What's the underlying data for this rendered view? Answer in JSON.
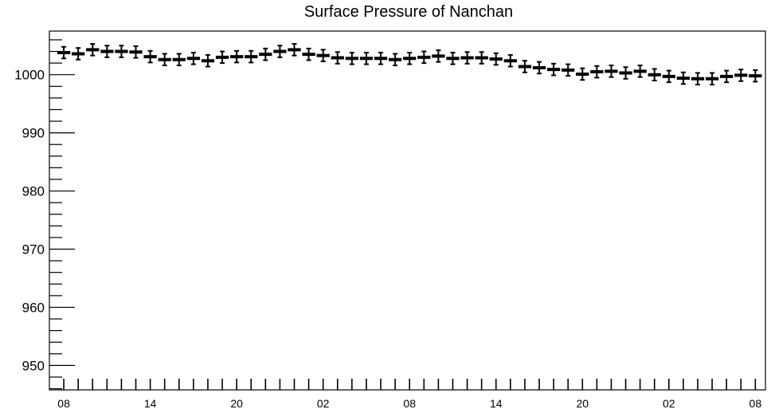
{
  "chart_data": {
    "type": "scatter",
    "title": "Surface Pressure of Nanchan",
    "xlabel": "",
    "ylabel": "",
    "ylim": [
      945.8,
      1007.5
    ],
    "xlim": [
      -1.0,
      48.7
    ],
    "x_tick_positions": [
      0,
      6,
      12,
      18,
      24,
      30,
      36,
      42,
      48
    ],
    "x_tick_labels": [
      "08",
      "14",
      "20",
      "02",
      "08",
      "14",
      "20",
      "02",
      "08"
    ],
    "y_ticks": [
      950,
      960,
      970,
      980,
      990,
      1000
    ],
    "grid": false,
    "error_bar": 1.0,
    "series": [
      {
        "x": [
          0,
          1,
          2,
          3,
          4,
          5,
          6,
          7,
          8,
          9,
          10,
          11,
          12,
          13,
          14,
          15,
          16,
          17,
          18,
          19,
          20,
          21,
          22,
          23,
          24,
          25,
          26,
          27,
          28,
          29,
          30,
          31,
          32,
          33,
          34,
          35,
          36,
          37,
          38,
          39,
          40,
          41,
          42,
          43,
          44,
          45,
          46,
          47,
          48
        ],
        "values": [
          1003.8,
          1003.6,
          1004.3,
          1004.0,
          1004.0,
          1003.9,
          1003.1,
          1002.6,
          1002.6,
          1002.8,
          1002.4,
          1003.0,
          1003.1,
          1003.1,
          1003.5,
          1004.0,
          1004.3,
          1003.5,
          1003.3,
          1002.9,
          1002.8,
          1002.8,
          1002.8,
          1002.6,
          1002.8,
          1003.0,
          1003.2,
          1002.8,
          1002.9,
          1002.9,
          1002.7,
          1002.4,
          1001.4,
          1001.2,
          1000.9,
          1000.8,
          1000.1,
          1000.5,
          1000.6,
          1000.3,
          1000.6,
          1000.0,
          999.7,
          999.4,
          999.3,
          999.3,
          999.7,
          999.9,
          999.8
        ]
      }
    ]
  }
}
